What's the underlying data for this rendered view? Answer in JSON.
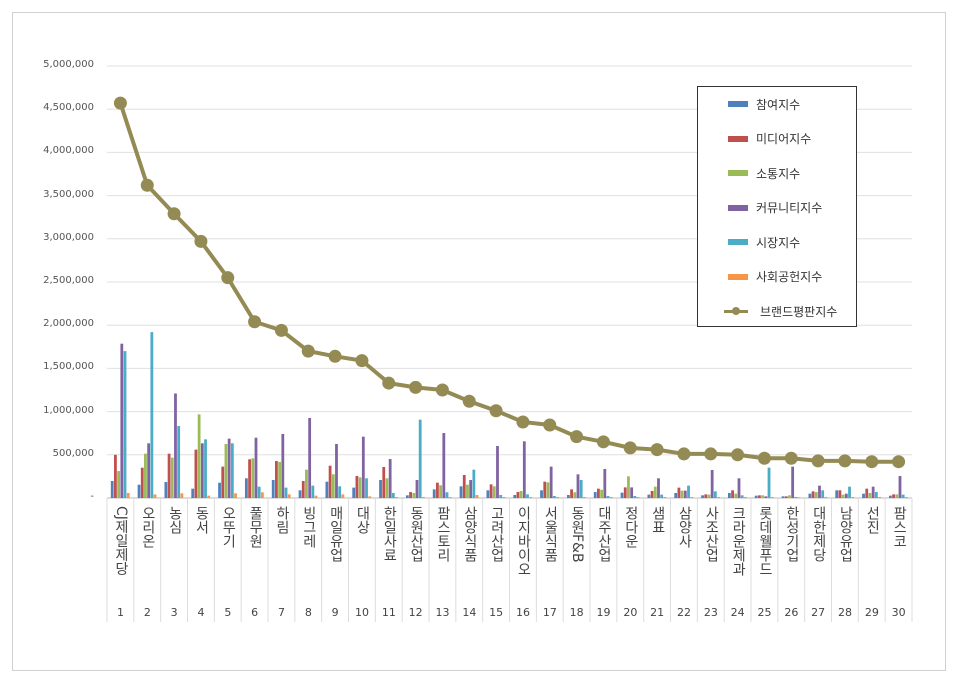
{
  "chart_data": {
    "type": "bar",
    "title": "",
    "xlabel": "",
    "ylabel": "",
    "ylim": [
      0,
      5000000
    ],
    "yticks": [
      "-",
      "500,000",
      "1,000,000",
      "1,500,000",
      "2,000,000",
      "2,500,000",
      "3,000,000",
      "3,500,000",
      "4,000,000",
      "4,500,000",
      "5,000,000"
    ],
    "grid": true,
    "legend_position": "top-right",
    "categories": [
      "CJ제일제당",
      "오리온",
      "농심",
      "동서",
      "오뚜기",
      "풀무원",
      "하림",
      "빙그레",
      "매일유업",
      "대상",
      "한일사료",
      "동원산업",
      "팜스토리",
      "삼양식품",
      "고려산업",
      "이지바이오",
      "서울식품",
      "동원F&B",
      "대주산업",
      "정다운",
      "샘표",
      "삼양사",
      "사조산업",
      "크라운제과",
      "롯데웰푸드",
      "한성기업",
      "대한제당",
      "남양유업",
      "선진",
      "팜스코"
    ],
    "ranks": [
      "1",
      "2",
      "3",
      "4",
      "5",
      "6",
      "7",
      "8",
      "9",
      "10",
      "11",
      "12",
      "13",
      "14",
      "15",
      "16",
      "17",
      "18",
      "19",
      "20",
      "21",
      "22",
      "23",
      "24",
      "25",
      "26",
      "27",
      "28",
      "29",
      "30"
    ],
    "series": [
      {
        "name": "참여지수",
        "type": "bar",
        "color": "#4F81BD",
        "values": [
          197000,
          154000,
          185000,
          108000,
          177000,
          228000,
          208000,
          89000,
          189000,
          120000,
          208000,
          31000,
          100000,
          135000,
          89000,
          35000,
          89000,
          35000,
          69000,
          62000,
          39000,
          58000,
          31000,
          58000,
          27000,
          19000,
          50000,
          89000,
          50000,
          27000
        ]
      },
      {
        "name": "미디어지수",
        "type": "bar",
        "color": "#C0504D",
        "values": [
          500000,
          351000,
          513000,
          560000,
          363000,
          448000,
          428000,
          197000,
          374000,
          255000,
          359000,
          69000,
          177000,
          266000,
          158000,
          69000,
          189000,
          100000,
          108000,
          123000,
          81000,
          120000,
          42000,
          89000,
          31000,
          19000,
          77000,
          89000,
          108000,
          42000
        ]
      },
      {
        "name": "소통지수",
        "type": "bar",
        "color": "#9BBB59",
        "values": [
          312000,
          513000,
          467000,
          968000,
          625000,
          459000,
          417000,
          328000,
          274000,
          239000,
          228000,
          58000,
          147000,
          154000,
          135000,
          81000,
          181000,
          66000,
          96000,
          251000,
          131000,
          85000,
          39000,
          50000,
          31000,
          31000,
          69000,
          39000,
          58000,
          42000
        ]
      },
      {
        "name": "커뮤니티지수",
        "type": "bar",
        "color": "#8064A2",
        "values": [
          1786000,
          633000,
          1210000,
          633000,
          687000,
          698000,
          741000,
          926000,
          625000,
          710000,
          451000,
          208000,
          752000,
          208000,
          602000,
          656000,
          363000,
          274000,
          336000,
          123000,
          228000,
          85000,
          324000,
          228000,
          19000,
          363000,
          143000,
          50000,
          131000,
          255000
        ]
      },
      {
        "name": "시장지수",
        "type": "bar",
        "color": "#4BACC6",
        "values": [
          1700000,
          1920000,
          833000,
          679000,
          633000,
          131000,
          120000,
          143000,
          135000,
          228000,
          58000,
          907000,
          66000,
          328000,
          35000,
          42000,
          23000,
          208000,
          23000,
          23000,
          39000,
          143000,
          77000,
          31000,
          351000,
          12000,
          89000,
          131000,
          69000,
          39000
        ]
      },
      {
        "name": "사회공헌지수",
        "type": "bar",
        "color": "#F79646",
        "values": [
          58000,
          42000,
          54000,
          27000,
          54000,
          66000,
          42000,
          27000,
          42000,
          19000,
          12000,
          12000,
          12000,
          35000,
          12000,
          12000,
          12000,
          12000,
          12000,
          12000,
          12000,
          12000,
          12000,
          12000,
          12000,
          8000,
          12000,
          12000,
          12000,
          12000
        ]
      },
      {
        "name": "브랜드평판지수",
        "type": "line",
        "color": "#948A54",
        "values": [
          4570000,
          3620000,
          3290000,
          2970000,
          2550000,
          2040000,
          1940000,
          1700000,
          1640000,
          1590000,
          1330000,
          1280000,
          1250000,
          1120000,
          1010000,
          880000,
          845000,
          710000,
          650000,
          580000,
          560000,
          510000,
          510000,
          500000,
          460000,
          460000,
          430000,
          430000,
          420000,
          420000
        ]
      }
    ]
  }
}
